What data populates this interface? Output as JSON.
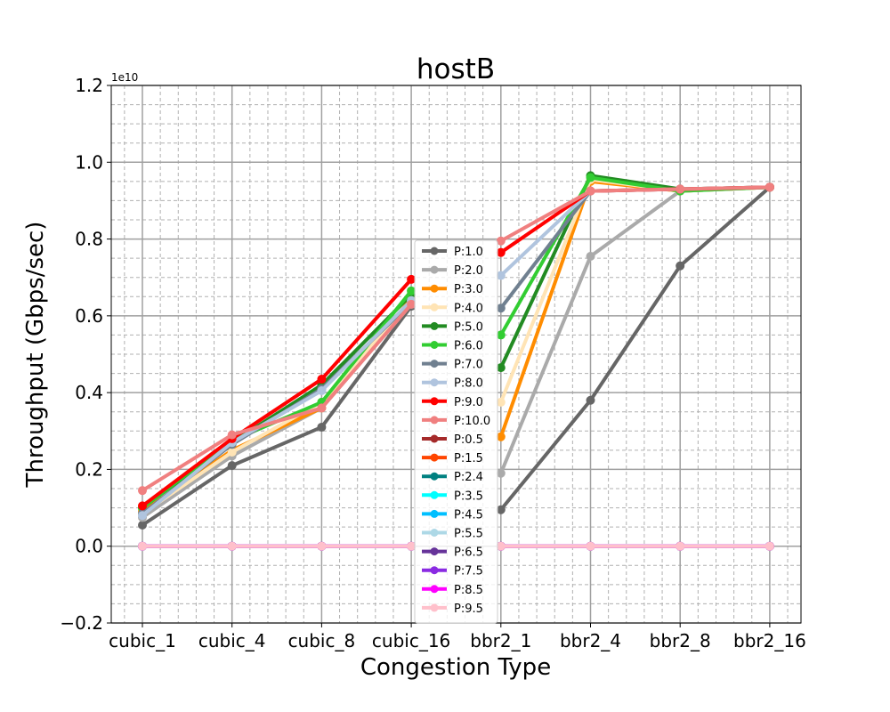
{
  "chart_data": {
    "type": "line",
    "title": "hostB",
    "xlabel": "Congestion Type",
    "ylabel": "Throughput (Gbps/sec)",
    "y_offset_label": "1e10",
    "categories": [
      "cubic_1",
      "cubic_4",
      "cubic_8",
      "cubic_16",
      "bbr2_1",
      "bbr2_4",
      "bbr2_8",
      "bbr2_16"
    ],
    "ylim": [
      -0.2,
      1.2
    ],
    "yticks": [
      -0.2,
      0.0,
      0.2,
      0.4,
      0.6,
      0.8,
      1.0,
      1.2
    ],
    "ytick_labels": [
      "−0.2",
      "0.0",
      "0.2",
      "0.4",
      "0.6",
      "0.8",
      "1.0",
      "1.2"
    ],
    "grid": true,
    "minor_grid": true,
    "legend_position": "center",
    "series": [
      {
        "name": "P:1.0",
        "color": "#666666",
        "values": [
          0.055,
          0.21,
          0.31,
          0.625,
          0.095,
          0.38,
          0.73,
          0.935
        ]
      },
      {
        "name": "P:2.0",
        "color": "#aaaaaa",
        "values": [
          0.075,
          0.235,
          0.36,
          0.63,
          0.19,
          0.755,
          0.925,
          0.935
        ]
      },
      {
        "name": "P:3.0",
        "color": "#ff8c00",
        "values": [
          0.09,
          0.25,
          0.36,
          0.645,
          0.285,
          0.95,
          0.925,
          0.935
        ]
      },
      {
        "name": "P:4.0",
        "color": "#ffe4b5",
        "values": [
          0.085,
          0.245,
          0.375,
          0.64,
          0.375,
          0.955,
          0.925,
          0.935
        ]
      },
      {
        "name": "P:5.0",
        "color": "#228b22",
        "values": [
          0.1,
          0.27,
          0.42,
          0.655,
          0.465,
          0.965,
          0.93,
          0.935
        ]
      },
      {
        "name": "P:6.0",
        "color": "#32cd32",
        "values": [
          0.1,
          0.275,
          0.375,
          0.665,
          0.55,
          0.96,
          0.925,
          0.935
        ]
      },
      {
        "name": "P:7.0",
        "color": "#708090",
        "values": [
          0.085,
          0.265,
          0.41,
          0.635,
          0.62,
          0.925,
          0.93,
          0.935
        ]
      },
      {
        "name": "P:8.0",
        "color": "#b0c4de",
        "values": [
          0.08,
          0.27,
          0.405,
          0.64,
          0.705,
          0.925,
          0.93,
          0.935
        ]
      },
      {
        "name": "P:9.0",
        "color": "#ff0000",
        "values": [
          0.105,
          0.28,
          0.435,
          0.695,
          0.765,
          0.925,
          0.93,
          0.935
        ]
      },
      {
        "name": "P:10.0",
        "color": "#f08080",
        "values": [
          0.145,
          0.29,
          0.36,
          0.63,
          0.795,
          0.925,
          0.93,
          0.935
        ]
      },
      {
        "name": "P:0.5",
        "color": "#a52a2a",
        "values": [
          0,
          0,
          0,
          0,
          0,
          0,
          0,
          0
        ]
      },
      {
        "name": "P:1.5",
        "color": "#ff4500",
        "values": [
          0,
          0,
          0,
          0,
          0,
          0,
          0,
          0
        ]
      },
      {
        "name": "P:2.4",
        "color": "#008080",
        "values": [
          0,
          0,
          0,
          0,
          0,
          0,
          0,
          0
        ]
      },
      {
        "name": "P:3.5",
        "color": "#00ffff",
        "values": [
          0,
          0,
          0,
          0,
          0,
          0,
          0,
          0
        ]
      },
      {
        "name": "P:4.5",
        "color": "#00bfff",
        "values": [
          0,
          0,
          0,
          0,
          0,
          0,
          0,
          0
        ]
      },
      {
        "name": "P:5.5",
        "color": "#add8e6",
        "values": [
          0,
          0,
          0,
          0,
          0,
          0,
          0,
          0
        ]
      },
      {
        "name": "P:6.5",
        "color": "#663399",
        "values": [
          0,
          0,
          0,
          0,
          0,
          0,
          0,
          0
        ]
      },
      {
        "name": "P:7.5",
        "color": "#8a2be2",
        "values": [
          0,
          0,
          0,
          0,
          0,
          0,
          0,
          0
        ]
      },
      {
        "name": "P:8.5",
        "color": "#ff00ff",
        "values": [
          0,
          0,
          0,
          0,
          0,
          0,
          0,
          0
        ]
      },
      {
        "name": "P:9.5",
        "color": "#ffc0cb",
        "values": [
          0,
          0,
          0,
          0,
          0,
          0,
          0,
          0
        ]
      }
    ]
  }
}
